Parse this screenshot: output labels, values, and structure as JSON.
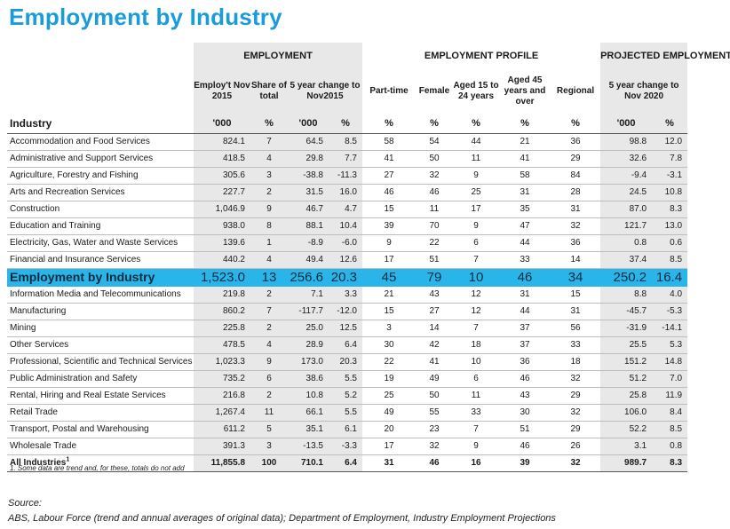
{
  "title": "Employment by Industry",
  "groups": {
    "employment": "EMPLOYMENT",
    "profile": "EMPLOYMENT PROFILE",
    "projected": "PROJECTED EMPLOYMENT"
  },
  "subheaders": {
    "employ_nov2015": "Employ't Nov 2015",
    "share_total": "Share of total",
    "five_year_change": "5 year change to Nov2015",
    "part_time": "Part-time",
    "female": "Female",
    "aged_15_24": "Aged 15 to 24 years",
    "aged_45_over": "Aged 45 years and over",
    "regional": "Regional",
    "proj_change": "5 year change to Nov 2020"
  },
  "units": {
    "industry": "Industry",
    "u1": "'000",
    "u2": "%",
    "u3": "'000",
    "u4": "%",
    "u5": "%",
    "u6": "%",
    "u7": "%",
    "u8": "%",
    "u9": "%",
    "u10": "'000",
    "u11": "%"
  },
  "rows": [
    {
      "name": "Accommodation and Food Services",
      "employ": "824.1",
      "share": "7",
      "chg": "64.5",
      "chg_pct": "8.5",
      "pt": "58",
      "fem": "54",
      "a1524": "44",
      "a45": "21",
      "reg": "36",
      "p_chg": "98.8",
      "p_pct": "12.0"
    },
    {
      "name": "Administrative and Support Services",
      "employ": "418.5",
      "share": "4",
      "chg": "29.8",
      "chg_pct": "7.7",
      "pt": "41",
      "fem": "50",
      "a1524": "11",
      "a45": "41",
      "reg": "29",
      "p_chg": "32.6",
      "p_pct": "7.8"
    },
    {
      "name": "Agriculture, Forestry and Fishing",
      "employ": "305.6",
      "share": "3",
      "chg": "-38.8",
      "chg_pct": "-11.3",
      "pt": "27",
      "fem": "32",
      "a1524": "9",
      "a45": "58",
      "reg": "84",
      "p_chg": "-9.4",
      "p_pct": "-3.1"
    },
    {
      "name": "Arts and Recreation Services",
      "employ": "227.7",
      "share": "2",
      "chg": "31.5",
      "chg_pct": "16.0",
      "pt": "46",
      "fem": "46",
      "a1524": "25",
      "a45": "31",
      "reg": "28",
      "p_chg": "24.5",
      "p_pct": "10.8"
    },
    {
      "name": "Construction",
      "employ": "1,046.9",
      "share": "9",
      "chg": "46.7",
      "chg_pct": "4.7",
      "pt": "15",
      "fem": "11",
      "a1524": "17",
      "a45": "35",
      "reg": "31",
      "p_chg": "87.0",
      "p_pct": "8.3"
    },
    {
      "name": "Education and Training",
      "employ": "938.0",
      "share": "8",
      "chg": "88.1",
      "chg_pct": "10.4",
      "pt": "39",
      "fem": "70",
      "a1524": "9",
      "a45": "47",
      "reg": "32",
      "p_chg": "121.7",
      "p_pct": "13.0"
    },
    {
      "name": "Electricity, Gas, Water and Waste Services",
      "employ": "139.6",
      "share": "1",
      "chg": "-8.9",
      "chg_pct": "-6.0",
      "pt": "9",
      "fem": "22",
      "a1524": "6",
      "a45": "44",
      "reg": "36",
      "p_chg": "0.8",
      "p_pct": "0.6"
    },
    {
      "name": "Financial and Insurance Services",
      "employ": "440.2",
      "share": "4",
      "chg": "49.4",
      "chg_pct": "12.6",
      "pt": "17",
      "fem": "51",
      "a1524": "7",
      "a45": "33",
      "reg": "14",
      "p_chg": "37.4",
      "p_pct": "8.5"
    }
  ],
  "highlight": {
    "name": "Employment by Industry",
    "employ": "1,523.0",
    "share": "13",
    "chg": "256.6",
    "chg_pct": "20.3",
    "pt": "45",
    "fem": "79",
    "a1524": "10",
    "a45": "46",
    "reg": "34",
    "p_chg": "250.2",
    "p_pct": "16.4"
  },
  "rows2": [
    {
      "name": "Information Media and Telecommunications",
      "employ": "219.8",
      "share": "2",
      "chg": "7.1",
      "chg_pct": "3.3",
      "pt": "21",
      "fem": "43",
      "a1524": "12",
      "a45": "31",
      "reg": "15",
      "p_chg": "8.8",
      "p_pct": "4.0"
    },
    {
      "name": "Manufacturing",
      "employ": "860.2",
      "share": "7",
      "chg": "-117.7",
      "chg_pct": "-12.0",
      "pt": "15",
      "fem": "27",
      "a1524": "12",
      "a45": "44",
      "reg": "31",
      "p_chg": "-45.7",
      "p_pct": "-5.3"
    },
    {
      "name": "Mining",
      "employ": "225.8",
      "share": "2",
      "chg": "25.0",
      "chg_pct": "12.5",
      "pt": "3",
      "fem": "14",
      "a1524": "7",
      "a45": "37",
      "reg": "56",
      "p_chg": "-31.9",
      "p_pct": "-14.1"
    },
    {
      "name": "Other Services",
      "employ": "478.5",
      "share": "4",
      "chg": "28.9",
      "chg_pct": "6.4",
      "pt": "30",
      "fem": "42",
      "a1524": "18",
      "a45": "37",
      "reg": "33",
      "p_chg": "25.5",
      "p_pct": "5.3"
    },
    {
      "name": "Professional, Scientific and Technical Services",
      "employ": "1,023.3",
      "share": "9",
      "chg": "173.0",
      "chg_pct": "20.3",
      "pt": "22",
      "fem": "41",
      "a1524": "10",
      "a45": "36",
      "reg": "18",
      "p_chg": "151.2",
      "p_pct": "14.8"
    },
    {
      "name": "Public Administration and Safety",
      "employ": "735.2",
      "share": "6",
      "chg": "38.6",
      "chg_pct": "5.5",
      "pt": "19",
      "fem": "49",
      "a1524": "6",
      "a45": "46",
      "reg": "32",
      "p_chg": "51.2",
      "p_pct": "7.0"
    },
    {
      "name": "Rental, Hiring and Real Estate Services",
      "employ": "216.8",
      "share": "2",
      "chg": "10.8",
      "chg_pct": "5.2",
      "pt": "25",
      "fem": "50",
      "a1524": "11",
      "a45": "43",
      "reg": "29",
      "p_chg": "25.8",
      "p_pct": "11.9"
    },
    {
      "name": "Retail Trade",
      "employ": "1,267.4",
      "share": "11",
      "chg": "66.1",
      "chg_pct": "5.5",
      "pt": "49",
      "fem": "55",
      "a1524": "33",
      "a45": "30",
      "reg": "32",
      "p_chg": "106.0",
      "p_pct": "8.4"
    },
    {
      "name": "Transport, Postal and Warehousing",
      "employ": "611.2",
      "share": "5",
      "chg": "35.1",
      "chg_pct": "6.1",
      "pt": "20",
      "fem": "23",
      "a1524": "7",
      "a45": "51",
      "reg": "29",
      "p_chg": "52.2",
      "p_pct": "8.5"
    },
    {
      "name": "Wholesale Trade",
      "employ": "391.3",
      "share": "3",
      "chg": "-13.5",
      "chg_pct": "-3.3",
      "pt": "17",
      "fem": "32",
      "a1524": "9",
      "a45": "46",
      "reg": "26",
      "p_chg": "3.1",
      "p_pct": "0.8"
    }
  ],
  "total": {
    "name": "All Industries",
    "sup": "1",
    "employ": "11,855.8",
    "share": "100",
    "chg": "710.1",
    "chg_pct": "6.4",
    "pt": "31",
    "fem": "46",
    "a1524": "16",
    "a45": "39",
    "reg": "32",
    "p_chg": "989.7",
    "p_pct": "8.3"
  },
  "footnote": "1. Some data are trend and, for these, totals do not add",
  "source_label": "Source:",
  "source_text": "ABS, Labour Force (trend and annual averages of original data); Department of Employment, Industry Employment Projections"
}
